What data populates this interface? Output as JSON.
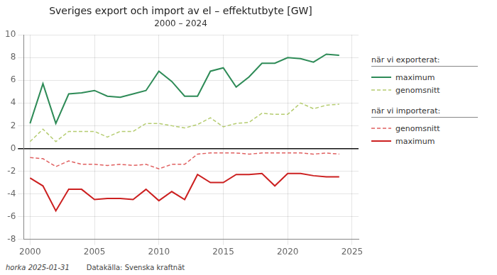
{
  "chart_data": {
    "type": "line",
    "title": "Sveriges export och import av el – effektutbyte [GW]",
    "subtitle": "2000 – 2024",
    "x": [
      2000,
      2001,
      2002,
      2003,
      2004,
      2005,
      2006,
      2007,
      2008,
      2009,
      2010,
      2011,
      2012,
      2013,
      2014,
      2015,
      2016,
      2017,
      2018,
      2019,
      2020,
      2021,
      2022,
      2023,
      2024
    ],
    "series": [
      {
        "name": "maximum",
        "color": "#2e8b57",
        "line_style": "solid",
        "values": [
          2.2,
          5.7,
          2.2,
          4.8,
          4.9,
          5.1,
          4.6,
          4.5,
          4.8,
          5.1,
          6.8,
          5.9,
          4.6,
          4.6,
          6.8,
          7.1,
          5.4,
          6.3,
          7.5,
          7.5,
          8.0,
          7.9,
          7.6,
          8.3,
          8.2
        ]
      },
      {
        "name": "genomsnitt",
        "color": "#b5cc70",
        "line_style": "dashed",
        "values": [
          0.6,
          1.7,
          0.6,
          1.5,
          1.5,
          1.5,
          1.0,
          1.5,
          1.5,
          2.2,
          2.2,
          2.0,
          1.8,
          2.1,
          2.7,
          1.9,
          2.2,
          2.3,
          3.1,
          3.0,
          3.0,
          4.0,
          3.5,
          3.8,
          3.9
        ]
      },
      {
        "name": "genomsnitt",
        "color": "#e06060",
        "line_style": "dashed",
        "values": [
          -0.8,
          -0.9,
          -1.6,
          -1.1,
          -1.4,
          -1.4,
          -1.5,
          -1.4,
          -1.5,
          -1.4,
          -1.8,
          -1.4,
          -1.4,
          -0.5,
          -0.4,
          -0.4,
          -0.4,
          -0.5,
          -0.4,
          -0.4,
          -0.4,
          -0.4,
          -0.5,
          -0.4,
          -0.5
        ]
      },
      {
        "name": "maximum",
        "color": "#cc2020",
        "line_style": "solid",
        "values": [
          -2.6,
          -3.3,
          -5.5,
          -3.6,
          -3.6,
          -4.5,
          -4.4,
          -4.4,
          -4.5,
          -3.6,
          -4.6,
          -3.8,
          -4.5,
          -2.3,
          -3.0,
          -3.0,
          -2.3,
          -2.3,
          -2.2,
          -3.3,
          -2.2,
          -2.2,
          -2.4,
          -2.5,
          -2.5
        ]
      }
    ],
    "xlim": [
      1999.5,
      2025.5
    ],
    "xticks": [
      2000,
      2005,
      2010,
      2015,
      2020,
      2025
    ],
    "ylim": [
      -8,
      10
    ],
    "yticks": [
      -8,
      -6,
      -4,
      -2,
      0,
      2,
      4,
      6,
      8,
      10
    ],
    "grid": true,
    "legend": "right",
    "annotations": [
      "när vi exporterat:",
      "när vi importerat:",
      "horka 2025-01-31",
      "Datakälla: Svenska kraftnät"
    ]
  }
}
